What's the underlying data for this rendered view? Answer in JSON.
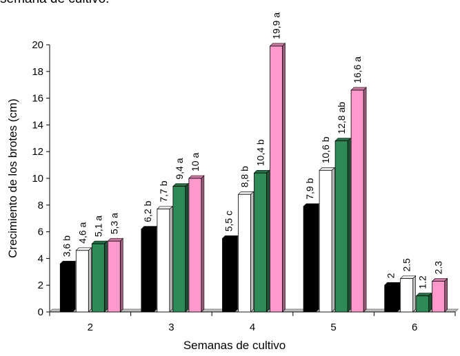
{
  "top_caption": "semana de cultivo.",
  "chart_data": {
    "type": "bar",
    "title": "",
    "xlabel": "Semanas de cultivo",
    "ylabel": "Crecimiento de los brotes (cm)",
    "ylim": [
      0,
      20
    ],
    "yticks": [
      "0",
      "2",
      "4",
      "6",
      "8",
      "10",
      "12",
      "14",
      "16",
      "18",
      "20"
    ],
    "categories": [
      "2",
      "3",
      "4",
      "5",
      "6"
    ],
    "grid": false,
    "legend": "none",
    "series": [
      {
        "color": "#000000",
        "values": [
          3.6,
          6.2,
          5.5,
          7.9,
          2.0
        ],
        "labels": [
          "3,6 b",
          "6,2 b",
          "5,5 c",
          "7,9 b",
          "2"
        ]
      },
      {
        "color": "#ffffff",
        "values": [
          4.6,
          7.7,
          8.8,
          10.6,
          2.5
        ],
        "labels": [
          "4,6 a",
          "7,7 b",
          "8,8 b",
          "10,6 b",
          "2.5"
        ]
      },
      {
        "color": "#2e8b57",
        "values": [
          5.1,
          9.4,
          10.4,
          12.8,
          1.2
        ],
        "labels": [
          "5,1 a",
          "9,4 a",
          "10,4 b",
          "12,8 ab",
          "1.2"
        ]
      },
      {
        "color": "#ff99cc",
        "values": [
          5.3,
          10.0,
          19.9,
          16.6,
          2.3
        ],
        "labels": [
          "5,3 a",
          "10 a",
          "19,9 a",
          "16,6 a",
          "2.3"
        ]
      }
    ]
  }
}
